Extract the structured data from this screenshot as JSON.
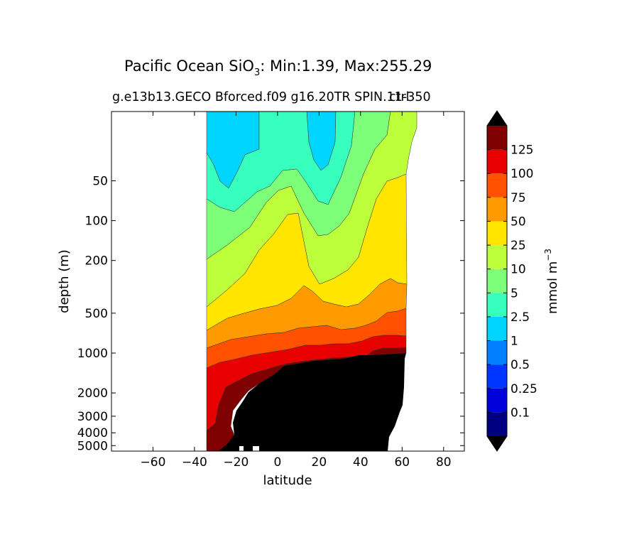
{
  "chart_data": {
    "type": "contour",
    "title_prefix": "Pacific Ocean SiO",
    "title_sub": "3",
    "title_rest": ": Min:1.39, Max:255.29",
    "subtitle": "g.e13b13.GECO Bforced.f09 g16.20TR SPIN.11-350",
    "subtitle_right": "ctrl",
    "xlabel": "latitude",
    "ylabel": "depth (m)",
    "xlim": [
      -80,
      90
    ],
    "xticks": [
      -60,
      -40,
      -20,
      0,
      20,
      40,
      60,
      80
    ],
    "ylim_depth_m": [
      15,
      5500
    ],
    "yscale": "log",
    "yticks": [
      50,
      100,
      200,
      500,
      1000,
      2000,
      3000,
      4000,
      5000
    ],
    "colorbar": {
      "label": "mmol m",
      "label_sup": "−3",
      "levels": [
        "0.1",
        "0.25",
        "0.5",
        "1",
        "2.5",
        "5",
        "10",
        "25",
        "50",
        "75",
        "100",
        "125"
      ],
      "colors": [
        "#000080",
        "#0000db",
        "#0035ff",
        "#0080ff",
        "#00d5ff",
        "#37ffbe",
        "#7dff7a",
        "#bcff3a",
        "#ffe500",
        "#ff9a00",
        "#ff5100",
        "#e80000",
        "#7f0000"
      ],
      "extend": "both"
    },
    "land_color": "#000000"
  }
}
